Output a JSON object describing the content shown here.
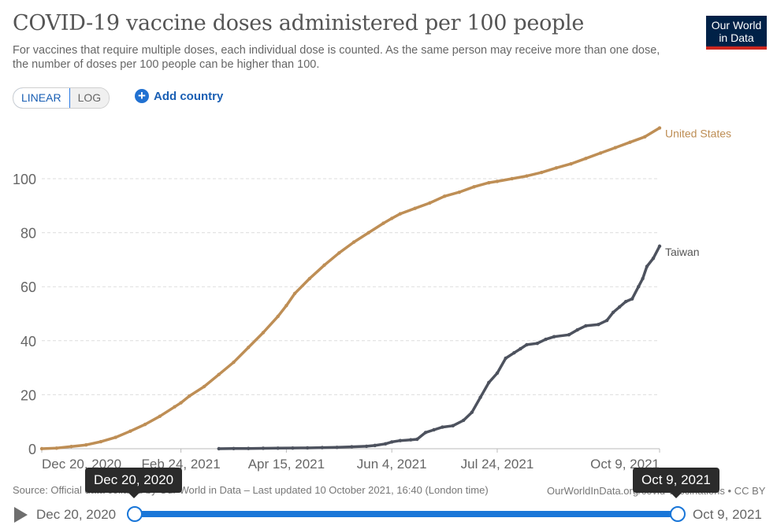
{
  "header": {
    "title": "COVID-19 vaccine doses administered per 100 people",
    "subtitle": "For vaccines that require multiple doses, each individual dose is counted. As the same person may receive more than one dose, the number of doses per 100 people can be higher than 100.",
    "logo_line1": "Our World",
    "logo_line2": "in Data"
  },
  "controls": {
    "scale_options": [
      "LINEAR",
      "LOG"
    ],
    "scale_selected": "LINEAR",
    "add_country_label": "Add country",
    "add_icon": "plus-circle-icon"
  },
  "footer": {
    "source": "Source: Official data collated by Our World in Data – Last updated 10 October 2021, 16:40 (London time)",
    "site": "OurWorldInData.org/covid-vaccinations • CC BY"
  },
  "timeline": {
    "start_label": "Dec 20, 2020",
    "end_label": "Oct 9, 2021",
    "start_tooltip": "Dec 20, 2020",
    "end_tooltip": "Oct 9, 2021",
    "play_icon": "play-icon"
  },
  "chart_data": {
    "type": "line",
    "title": "COVID-19 vaccine doses administered per 100 people",
    "xlabel": "",
    "ylabel": "",
    "x_range": [
      "2020-12-20",
      "2021-10-09"
    ],
    "ylim": [
      0,
      120
    ],
    "yticks": [
      0,
      20,
      40,
      60,
      80,
      100
    ],
    "xtick_labels": [
      "Dec 20, 2020",
      "Feb 24, 2021",
      "Apr 15, 2021",
      "Jun 4, 2021",
      "Jul 24, 2021",
      "Oct 9, 2021"
    ],
    "xtick_days": [
      0,
      66,
      116,
      166,
      216,
      293
    ],
    "grid": "horizontal-dashed",
    "legend": "inline-right",
    "series": [
      {
        "name": "United States",
        "color": "#be8e55",
        "points": [
          [
            0,
            0
          ],
          [
            7,
            0.2
          ],
          [
            14,
            0.8
          ],
          [
            21,
            1.4
          ],
          [
            28,
            2.6
          ],
          [
            35,
            4.2
          ],
          [
            42,
            6.5
          ],
          [
            49,
            9.0
          ],
          [
            56,
            12.0
          ],
          [
            63,
            15.5
          ],
          [
            66,
            17.0
          ],
          [
            70,
            19.5
          ],
          [
            77,
            23.0
          ],
          [
            84,
            27.5
          ],
          [
            91,
            32.0
          ],
          [
            98,
            37.5
          ],
          [
            105,
            43.0
          ],
          [
            112,
            49.0
          ],
          [
            116,
            53.0
          ],
          [
            120,
            57.5
          ],
          [
            127,
            63.0
          ],
          [
            134,
            68.0
          ],
          [
            141,
            72.5
          ],
          [
            148,
            76.5
          ],
          [
            155,
            80.0
          ],
          [
            162,
            83.5
          ],
          [
            166,
            85.3
          ],
          [
            170,
            87.0
          ],
          [
            177,
            89.0
          ],
          [
            184,
            91.0
          ],
          [
            191,
            93.5
          ],
          [
            198,
            95.0
          ],
          [
            205,
            97.0
          ],
          [
            212,
            98.5
          ],
          [
            216,
            99.0
          ],
          [
            223,
            100.0
          ],
          [
            230,
            101.0
          ],
          [
            237,
            102.3
          ],
          [
            244,
            104.0
          ],
          [
            251,
            105.5
          ],
          [
            258,
            107.5
          ],
          [
            265,
            109.5
          ],
          [
            272,
            111.5
          ],
          [
            279,
            113.5
          ],
          [
            286,
            115.5
          ],
          [
            293,
            118.8
          ]
        ]
      },
      {
        "name": "Taiwan",
        "color": "#4d525e",
        "points": [
          [
            84,
            0
          ],
          [
            91,
            0.05
          ],
          [
            98,
            0.1
          ],
          [
            105,
            0.15
          ],
          [
            112,
            0.2
          ],
          [
            119,
            0.25
          ],
          [
            126,
            0.3
          ],
          [
            133,
            0.4
          ],
          [
            140,
            0.5
          ],
          [
            147,
            0.7
          ],
          [
            154,
            0.9
          ],
          [
            158,
            1.2
          ],
          [
            163,
            1.8
          ],
          [
            166,
            2.5
          ],
          [
            170,
            3.0
          ],
          [
            175,
            3.3
          ],
          [
            178,
            3.5
          ],
          [
            182,
            6.0
          ],
          [
            186,
            7.0
          ],
          [
            190,
            8.0
          ],
          [
            195,
            8.5
          ],
          [
            200,
            10.5
          ],
          [
            204,
            13.5
          ],
          [
            208,
            19.0
          ],
          [
            212,
            24.5
          ],
          [
            216,
            28.0
          ],
          [
            220,
            33.5
          ],
          [
            224,
            35.5
          ],
          [
            227,
            37.0
          ],
          [
            230,
            38.5
          ],
          [
            235,
            39.0
          ],
          [
            239,
            40.5
          ],
          [
            243,
            41.5
          ],
          [
            250,
            42.2
          ],
          [
            254,
            44.0
          ],
          [
            258,
            45.5
          ],
          [
            264,
            46.0
          ],
          [
            268,
            47.5
          ],
          [
            271,
            50.5
          ],
          [
            274,
            52.5
          ],
          [
            277,
            54.5
          ],
          [
            280,
            55.5
          ],
          [
            283,
            60.0
          ],
          [
            285,
            63.0
          ],
          [
            287,
            67.5
          ],
          [
            290,
            70.5
          ],
          [
            293,
            75.0
          ]
        ]
      }
    ]
  }
}
